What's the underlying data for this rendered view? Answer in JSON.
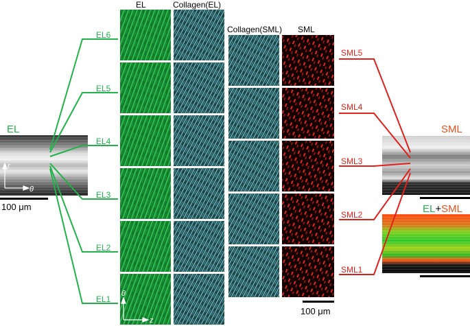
{
  "column_headers": {
    "el": "EL",
    "collagen_el": "Collagen(EL)",
    "collagen_sml": "Collagen(SML)",
    "sml": "SML"
  },
  "el_layer_labels": [
    "EL6",
    "EL5",
    "EL4",
    "EL3",
    "EL2",
    "EL1"
  ],
  "sml_layer_labels": [
    "SML5",
    "SML4",
    "SML3",
    "SML2",
    "SML1"
  ],
  "left_section": {
    "title": "EL",
    "axis_vertical": "r",
    "axis_horizontal": "θ",
    "scalebar": "100 μm"
  },
  "bottom_axes": {
    "axis_vertical": "θ",
    "axis_horizontal": "z"
  },
  "center_scalebar": "100 μm",
  "right_section": {
    "sml_title": "SML",
    "merge_title_el": "EL",
    "merge_title_plus": "+",
    "merge_title_sml": "SML"
  },
  "colors": {
    "el_green": "#21b24a",
    "sml_red": "#e0201a",
    "sml_title_orange": "#e8501c",
    "collagen_cyan": "#7fd4dc"
  }
}
